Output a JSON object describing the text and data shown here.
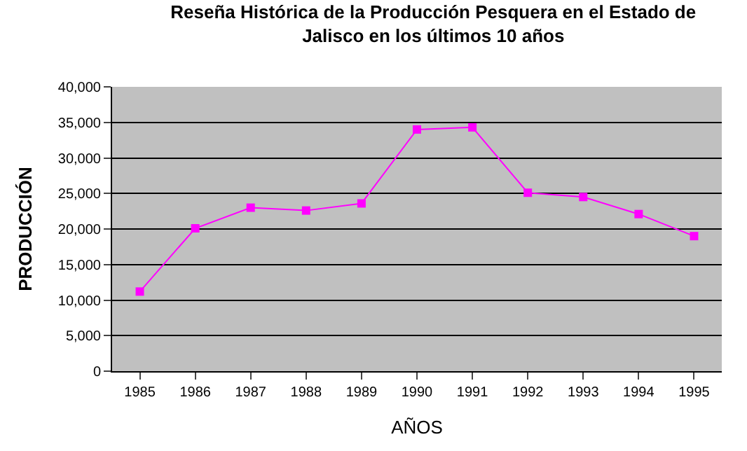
{
  "chart_data": {
    "type": "line",
    "title": "Reseña Histórica de la Producción Pesquera en el Estado de\nJalisco en los últimos 10 años",
    "xlabel": "AÑOS",
    "ylabel": "PRODUCCIÓN",
    "categories": [
      "1985",
      "1986",
      "1987",
      "1988",
      "1989",
      "1990",
      "1991",
      "1992",
      "1993",
      "1994",
      "1995"
    ],
    "series": [
      {
        "color": "#ff00ff",
        "values": [
          11200,
          20100,
          23000,
          22600,
          23600,
          34000,
          34300,
          25100,
          24500,
          22100,
          19000
        ]
      }
    ],
    "ylim": [
      0,
      40000
    ],
    "yticks": [
      {
        "value": 0,
        "label": "0"
      },
      {
        "value": 5000,
        "label": "5,000"
      },
      {
        "value": 10000,
        "label": "10,000"
      },
      {
        "value": 15000,
        "label": "15,000"
      },
      {
        "value": 20000,
        "label": "20,000"
      },
      {
        "value": 25000,
        "label": "25,000"
      },
      {
        "value": 30000,
        "label": "30,000"
      },
      {
        "value": 35000,
        "label": "35,000"
      },
      {
        "value": 40000,
        "label": "40,000"
      }
    ],
    "grid": "y",
    "legend": false,
    "marker": "square",
    "line_style": "solid"
  }
}
